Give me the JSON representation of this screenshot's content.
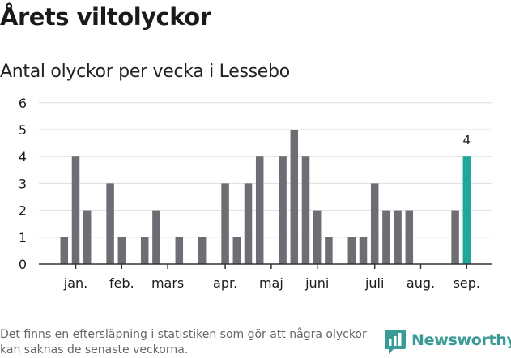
{
  "title": "Årets viltolyckor",
  "subtitle": "Antal olyckor per vecka i Lessebo",
  "footnote": "Det finns en eftersläpning i statistiken som gör att några olyckor kan saknas de senaste veckorna.",
  "brand": {
    "name": "Newsworthy",
    "icon": "newsworthy-logo-icon"
  },
  "colors": {
    "bar": "#6e6d73",
    "highlight": "#1fa79b",
    "grid": "#dedede",
    "axis": "#333333",
    "text": "#1a1a1a"
  },
  "chart_data": {
    "type": "bar",
    "title": "Antal olyckor per vecka i Lessebo",
    "xlabel": "",
    "ylabel": "",
    "ylim": [
      0,
      6
    ],
    "yticks": [
      "0",
      "1",
      "2",
      "3",
      "4",
      "5",
      "6"
    ],
    "grid": true,
    "weeks": [
      1,
      2,
      3,
      4,
      5,
      6,
      7,
      8,
      9,
      10,
      11,
      12,
      13,
      14,
      15,
      16,
      17,
      18,
      19,
      20,
      21,
      22,
      23,
      24,
      25,
      26,
      27,
      28,
      29,
      30,
      31,
      32,
      33,
      34,
      35,
      36
    ],
    "values": [
      1,
      4,
      2,
      0,
      3,
      1,
      0,
      1,
      2,
      0,
      1,
      0,
      1,
      0,
      3,
      1,
      3,
      4,
      0,
      4,
      5,
      4,
      2,
      1,
      0,
      1,
      1,
      3,
      2,
      2,
      2,
      0,
      0,
      0,
      2,
      4
    ],
    "highlight_index": 35,
    "highlight_label": "4",
    "month_labels": [
      {
        "label": "jan.",
        "week": 2.5
      },
      {
        "label": "feb.",
        "week": 6.5
      },
      {
        "label": "mars",
        "week": 10.5
      },
      {
        "label": "apr.",
        "week": 15.5
      },
      {
        "label": "maj",
        "week": 19.5
      },
      {
        "label": "juni",
        "week": 23.5
      },
      {
        "label": "juli",
        "week": 28.5
      },
      {
        "label": "aug.",
        "week": 32.5
      },
      {
        "label": "sep.",
        "week": 36.5
      }
    ]
  }
}
